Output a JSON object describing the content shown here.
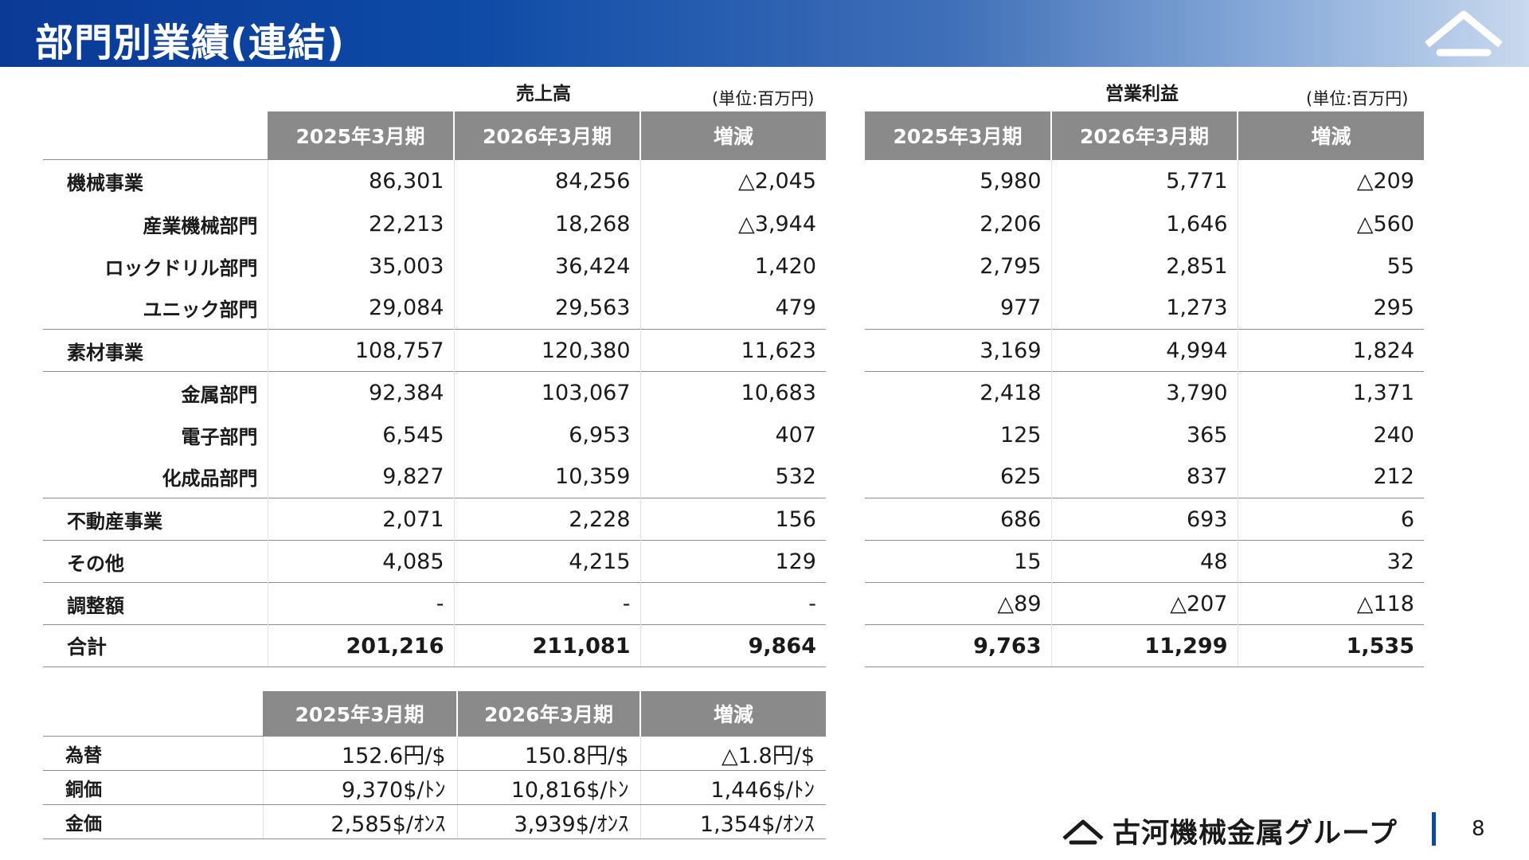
{
  "title": "部門別業績(連結)",
  "sales": {
    "caption": "売上高",
    "unit": "(単位:百万円)",
    "columns": [
      "2025年3月期",
      "2026年3月期",
      "増減"
    ],
    "rows": [
      {
        "label": "機械事業",
        "v": [
          "86,301",
          "84,256",
          "△2,045"
        ]
      },
      {
        "label": "産業機械部門",
        "v": [
          "22,213",
          "18,268",
          "△3,944"
        ]
      },
      {
        "label": "ロックドリル部門",
        "v": [
          "35,003",
          "36,424",
          "1,420"
        ]
      },
      {
        "label": "ユニック部門",
        "v": [
          "29,084",
          "29,563",
          "479"
        ]
      },
      {
        "label": "素材事業",
        "v": [
          "108,757",
          "120,380",
          "11,623"
        ]
      },
      {
        "label": "金属部門",
        "v": [
          "92,384",
          "103,067",
          "10,683"
        ]
      },
      {
        "label": "電子部門",
        "v": [
          "6,545",
          "6,953",
          "407"
        ]
      },
      {
        "label": "化成品部門",
        "v": [
          "9,827",
          "10,359",
          "532"
        ]
      },
      {
        "label": "不動産事業",
        "v": [
          "2,071",
          "2,228",
          "156"
        ]
      },
      {
        "label": "その他",
        "v": [
          "4,085",
          "4,215",
          "129"
        ]
      },
      {
        "label": "調整額",
        "v": [
          "-",
          "-",
          "-"
        ]
      },
      {
        "label": "合計",
        "v": [
          "201,216",
          "211,081",
          "9,864"
        ]
      }
    ]
  },
  "profit": {
    "caption": "営業利益",
    "unit": "(単位:百万円)",
    "columns": [
      "2025年3月期",
      "2026年3月期",
      "増減"
    ],
    "rows": [
      [
        "5,980",
        "5,771",
        "△209"
      ],
      [
        "2,206",
        "1,646",
        "△560"
      ],
      [
        "2,795",
        "2,851",
        "55"
      ],
      [
        "977",
        "1,273",
        "295"
      ],
      [
        "3,169",
        "4,994",
        "1,824"
      ],
      [
        "2,418",
        "3,790",
        "1,371"
      ],
      [
        "125",
        "365",
        "240"
      ],
      [
        "625",
        "837",
        "212"
      ],
      [
        "686",
        "693",
        "6"
      ],
      [
        "15",
        "48",
        "32"
      ],
      [
        "△89",
        "△207",
        "△118"
      ],
      [
        "9,763",
        "11,299",
        "1,535"
      ]
    ]
  },
  "rates": {
    "columns": [
      "2025年3月期",
      "2026年3月期",
      "増減"
    ],
    "rows": [
      {
        "label": "為替",
        "v": [
          "152.6円/$",
          "150.8円/$",
          "△1.8円/$"
        ]
      },
      {
        "label": "銅価",
        "v": [
          "9,370$/ﾄﾝ",
          "10,816$/ﾄﾝ",
          "1,446$/ﾄﾝ"
        ]
      },
      {
        "label": "金価",
        "v": [
          "2,585$/ｵﾝｽ",
          "3,939$/ｵﾝｽ",
          "1,354$/ｵﾝｽ"
        ]
      }
    ]
  },
  "footer": {
    "logo_text": "古河機械金属グループ",
    "page_number": "8"
  },
  "icons": {
    "header": "furukawa-roof-logo-icon",
    "footer": "furukawa-roof-small-icon"
  },
  "colors": {
    "header_start": "#0a3a96",
    "header_end": "#c9d9ee",
    "column_header": "#8a8a8a",
    "accent_bar": "#0d4aa6"
  }
}
